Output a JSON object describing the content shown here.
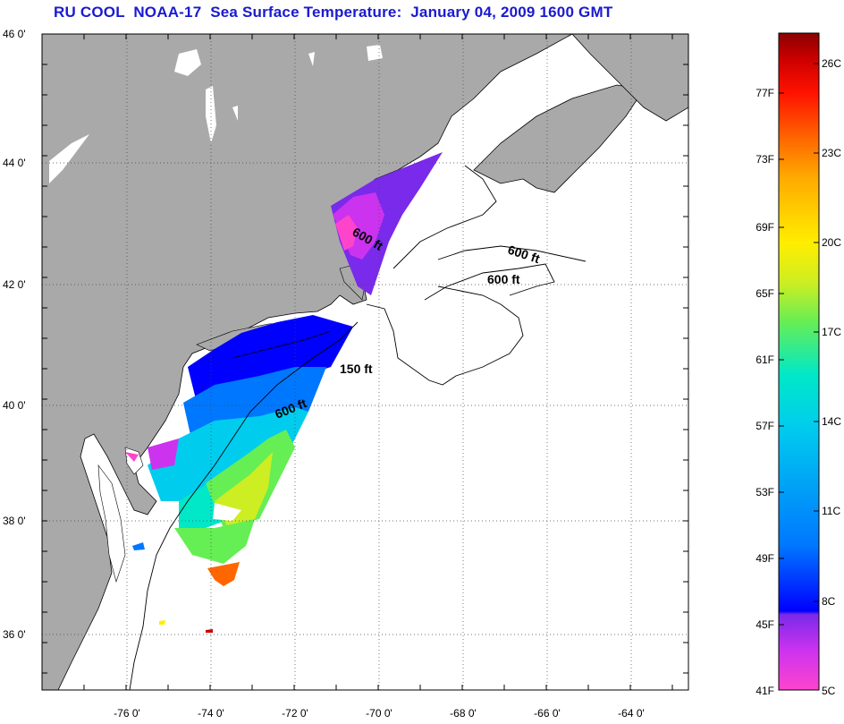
{
  "title": "RU COOL  NOAA-17  Sea Surface Temperature:  January 04, 2009 1600 GMT",
  "colors": {
    "land": "#a9a9a9",
    "ocean": "#ffffff",
    "coast": "#000000",
    "title": "#1a1ad0"
  },
  "map": {
    "lat_ticks": [
      "46 0'",
      "44 0'",
      "42 0'",
      "40 0'",
      "38 0'",
      "36 0'"
    ],
    "lon_ticks": [
      "-76 0'",
      "-74 0'",
      "-72 0'",
      "-70 0'",
      "-68 0'",
      "-66 0'",
      "-64 0'"
    ],
    "contour_labels": [
      "600 ft",
      "600 ft",
      "600 ft",
      "150 ft",
      "600 ft"
    ]
  },
  "colorbar": {
    "fahrenheit_labels": [
      "77F",
      "73F",
      "69F",
      "65F",
      "61F",
      "57F",
      "53F",
      "49F",
      "45F",
      "41F"
    ],
    "celsius_labels": [
      "26C",
      "23C",
      "20C",
      "17C",
      "14C",
      "11C",
      "8C",
      "5C"
    ],
    "stops": [
      "#ff44cc",
      "#cc33ee",
      "#7a2aea",
      "#0000ff",
      "#0077ff",
      "#00ccee",
      "#00e8c8",
      "#66ee55",
      "#ccee22",
      "#ffee00",
      "#ffaa00",
      "#ff6600",
      "#ff1100",
      "#cc0000",
      "#8b0000"
    ]
  }
}
